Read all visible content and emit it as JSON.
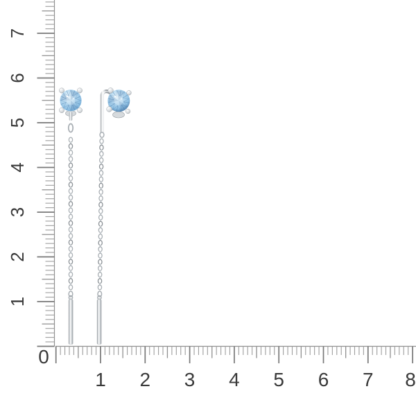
{
  "page": {
    "background": "#ffffff"
  },
  "rulers": {
    "corner_label": "0",
    "vertical": {
      "orientation": "left",
      "labels": [
        "1",
        "2",
        "3",
        "4",
        "5",
        "6",
        "7"
      ],
      "max_value": 7.7
    },
    "horizontal": {
      "orientation": "bottom",
      "labels": [
        "1",
        "2",
        "3",
        "4",
        "5",
        "6",
        "7",
        "8"
      ],
      "max_value": 8.1
    },
    "number_color": "#3a3a3a",
    "line_color": "#8f8f8f",
    "tick_color": "#9d9d9d",
    "half_tick_color": "#8f8f8f",
    "major_tick_color": "#787878"
  },
  "product": {
    "subject": "pair-of-blue-gemstone-threader-stud-earrings",
    "colors": {
      "stone_light": "#e8f4fb",
      "stone_pale": "#bcdcf1",
      "stone_mid": "#8fc0e3",
      "stone_dark": "#68a3cf",
      "stone_deep": "#3f6f9e",
      "facet_line": "#4a7cab",
      "metal_light": "#ffffff",
      "metal_mid": "#d6dadd",
      "metal_dark": "#979da2",
      "chain": "#a9afb4",
      "chain_dark": "#8b9196",
      "chain_bar": "#c6cbcf"
    }
  }
}
